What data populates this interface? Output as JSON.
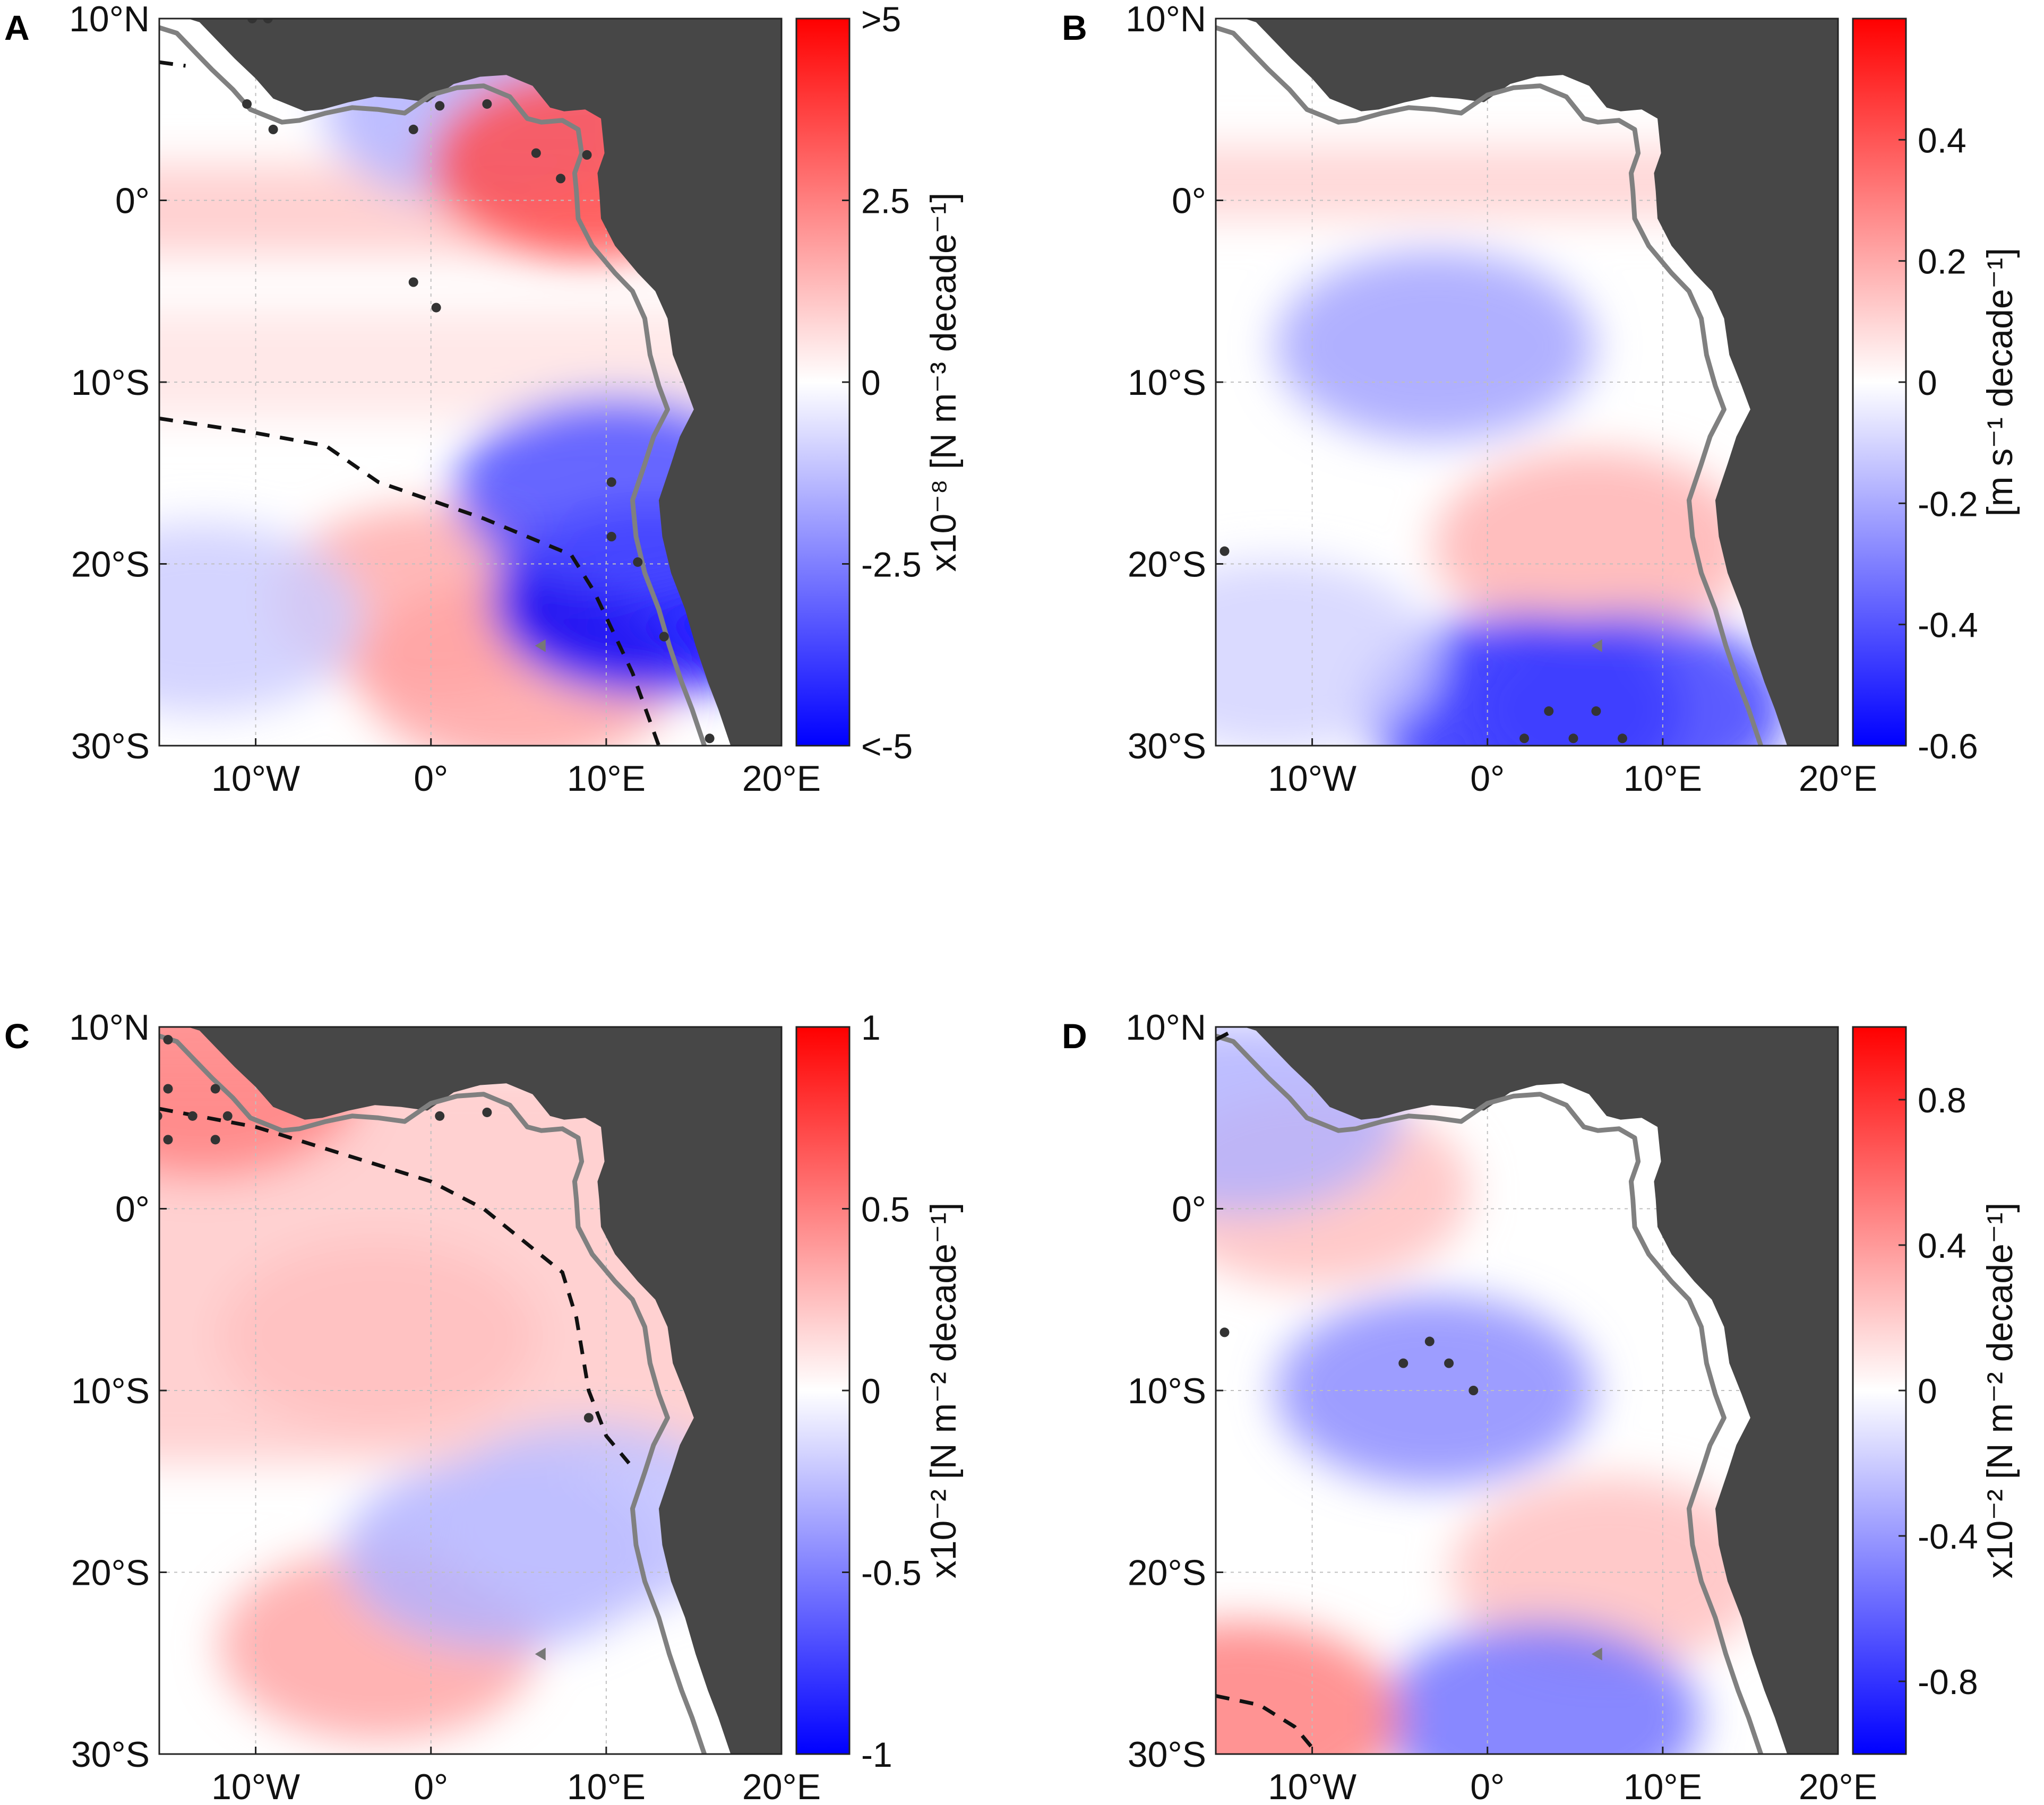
{
  "figure": {
    "panels": [
      {
        "letter": "A",
        "title": ""
      },
      {
        "letter": "B",
        "title": ""
      },
      {
        "letter": "C",
        "title": ""
      },
      {
        "letter": "D",
        "title": ""
      }
    ]
  },
  "chart_data": [
    {
      "type": "heatmap",
      "panel": "A",
      "description_variable": "trend map",
      "xlabel": "",
      "ylabel": "",
      "xlim": [
        -15.5,
        20
      ],
      "ylim": [
        -30,
        10
      ],
      "xticks": [
        -10,
        0,
        10,
        20
      ],
      "xtick_labels": [
        "10°W",
        "0°",
        "10°E",
        "20°E"
      ],
      "yticks": [
        10,
        0,
        -10,
        -20,
        -30
      ],
      "ytick_labels": [
        "10°N",
        "0°",
        "10°S",
        "20°S",
        "30°S"
      ],
      "colorbar": {
        "label": "x10⁻⁸ [N m⁻³ decade⁻¹]",
        "min": -5,
        "max": 5,
        "ticks": [
          5,
          2.5,
          0,
          -2.5,
          -5
        ],
        "tick_labels": [
          ">5",
          "2.5",
          "0",
          "-2.5",
          "<-5"
        ],
        "colormap": [
          "#0000ff",
          "#ffffff",
          "#ff0000"
        ]
      },
      "features": [
        {
          "type": "band",
          "lat_range": [
            -3,
            2
          ],
          "value": 1.0
        },
        {
          "type": "band",
          "lat_range": [
            -12,
            -6
          ],
          "value": 0.5
        },
        {
          "type": "blob",
          "lon": 0,
          "lat": -22,
          "value": 1.6
        },
        {
          "type": "blob",
          "lon": 5,
          "lat": -26,
          "value": 1.8
        },
        {
          "type": "blob",
          "lon": 12.5,
          "lat": -22,
          "value": -5
        },
        {
          "type": "blob",
          "lon": 10.5,
          "lat": -16,
          "value": -3.5
        },
        {
          "type": "blob",
          "lon": 3,
          "lat": 5,
          "value": -1.5
        },
        {
          "type": "blob",
          "lon": 9,
          "lat": 2,
          "value": 3.5
        },
        {
          "type": "blob",
          "lon": -13,
          "lat": -23,
          "value": -1.0
        }
      ],
      "dashed_contour": [
        [
          -15.5,
          -12
        ],
        [
          -10,
          -12.8
        ],
        [
          -6,
          -13.5
        ],
        [
          -3,
          -15.5
        ],
        [
          3,
          -17.5
        ],
        [
          8,
          -19.5
        ],
        [
          9.3,
          -21.5
        ],
        [
          11.5,
          -26
        ],
        [
          13,
          -30
        ]
      ],
      "dashed_contour_north": [
        [
          -15.5,
          7.6
        ],
        [
          -14,
          7.4
        ]
      ],
      "significance_points": [
        [
          -10.2,
          10
        ],
        [
          -9.3,
          10
        ],
        [
          -10.5,
          5.3
        ],
        [
          -9,
          3.9
        ],
        [
          -1,
          3.9
        ],
        [
          0.5,
          5.2
        ],
        [
          3.2,
          5.3
        ],
        [
          6,
          2.6
        ],
        [
          7.4,
          1.2
        ],
        [
          8.9,
          2.5
        ],
        [
          -1,
          -4.5
        ],
        [
          0.3,
          -5.9
        ],
        [
          10.3,
          -15.5
        ],
        [
          10.3,
          -18.5
        ],
        [
          11.8,
          -19.9
        ],
        [
          13.3,
          -24
        ],
        [
          15.9,
          -29.6
        ]
      ],
      "marker": [
        6.3,
        -24.5
      ]
    },
    {
      "type": "heatmap",
      "panel": "B",
      "xlabel": "",
      "ylabel": "",
      "xlim": [
        -15.5,
        20
      ],
      "ylim": [
        -30,
        10
      ],
      "xticks": [
        -10,
        0,
        10,
        20
      ],
      "xtick_labels": [
        "10°W",
        "0°",
        "10°E",
        "20°E"
      ],
      "yticks": [
        10,
        0,
        -10,
        -20,
        -30
      ],
      "ytick_labels": [
        "10°N",
        "0°",
        "10°S",
        "20°S",
        "30°S"
      ],
      "colorbar": {
        "label": "[m s⁻¹ decade⁻¹]",
        "min": -0.6,
        "max": 0.6,
        "ticks": [
          0.4,
          0.2,
          0,
          -0.2,
          -0.4,
          -0.6
        ],
        "tick_labels": [
          "0.4",
          "0.2",
          "0",
          "-0.2",
          "-0.4",
          "-0.6"
        ],
        "colormap": [
          "#0000ff",
          "#ffffff",
          "#ff0000"
        ]
      },
      "features": [
        {
          "type": "band",
          "lat_range": [
            -1,
            3
          ],
          "value": 0.1
        },
        {
          "type": "blob",
          "lon": -3,
          "lat": -8,
          "value": -0.22
        },
        {
          "type": "blob",
          "lon": 6,
          "lat": -19,
          "value": 0.18
        },
        {
          "type": "blob",
          "lon": 2,
          "lat": -28,
          "value": -0.5
        },
        {
          "type": "blob",
          "lon": 8,
          "lat": -28,
          "value": -0.45
        },
        {
          "type": "blob",
          "lon": -12,
          "lat": -25,
          "value": -0.1
        }
      ],
      "dashed_contour": [],
      "significance_points": [
        [
          -15,
          -19.3
        ],
        [
          3.5,
          -28.1
        ],
        [
          6.2,
          -28.1
        ],
        [
          2.1,
          -29.6
        ],
        [
          4.9,
          -29.6
        ],
        [
          7.7,
          -29.6
        ]
      ],
      "marker": [
        6.3,
        -24.5
      ]
    },
    {
      "type": "heatmap",
      "panel": "C",
      "xlabel": "",
      "ylabel": "",
      "xlim": [
        -15.5,
        20
      ],
      "ylim": [
        -30,
        10
      ],
      "xticks": [
        -10,
        0,
        10,
        20
      ],
      "xtick_labels": [
        "10°W",
        "0°",
        "10°E",
        "20°E"
      ],
      "yticks": [
        10,
        0,
        -10,
        -20,
        -30
      ],
      "ytick_labels": [
        "10°N",
        "0°",
        "10°S",
        "20°S",
        "30°S"
      ],
      "colorbar": {
        "label": "x10⁻² [N m⁻² decade⁻¹]",
        "min": -1,
        "max": 1,
        "ticks": [
          1,
          0.5,
          0,
          -0.5,
          -1
        ],
        "tick_labels": [
          "1",
          "0.5",
          "0",
          "-0.5",
          "-1"
        ],
        "colormap": [
          "#0000ff",
          "#ffffff",
          "#ff0000"
        ]
      },
      "features": [
        {
          "type": "band",
          "lat_range": [
            -14,
            8
          ],
          "value": 0.2
        },
        {
          "type": "blob",
          "lon": -3,
          "lat": -7,
          "value": 0.25
        },
        {
          "type": "blob",
          "lon": -13,
          "lat": 7,
          "value": 0.5
        },
        {
          "type": "blob",
          "lon": -3,
          "lat": -24,
          "value": 0.35
        },
        {
          "type": "blob",
          "lon": 4,
          "lat": -19,
          "value": -0.3
        },
        {
          "type": "blob",
          "lon": 9,
          "lat": -17,
          "value": -0.25
        }
      ],
      "dashed_contour": [
        [
          -15.5,
          5.5
        ],
        [
          -10,
          4.5
        ],
        [
          -5,
          3
        ],
        [
          0,
          1.5
        ],
        [
          3,
          0
        ],
        [
          7.5,
          -3.5
        ],
        [
          8.3,
          -6
        ],
        [
          9,
          -10
        ],
        [
          10,
          -12.5
        ],
        [
          11.3,
          -14
        ]
      ],
      "significance_points": [
        [
          -15,
          9.3
        ],
        [
          -15,
          6.6
        ],
        [
          -12.3,
          6.6
        ],
        [
          -15.6,
          5.1
        ],
        [
          -13.6,
          5.1
        ],
        [
          -11.6,
          5.1
        ],
        [
          -15,
          3.8
        ],
        [
          -12.3,
          3.8
        ],
        [
          0.5,
          5.1
        ],
        [
          3.2,
          5.3
        ],
        [
          9,
          -11.5
        ]
      ],
      "marker": [
        6.3,
        -24.5
      ]
    },
    {
      "type": "heatmap",
      "panel": "D",
      "xlabel": "",
      "ylabel": "",
      "xlim": [
        -15.5,
        20
      ],
      "ylim": [
        -30,
        10
      ],
      "xticks": [
        -10,
        0,
        10,
        20
      ],
      "xtick_labels": [
        "10°W",
        "0°",
        "10°E",
        "20°E"
      ],
      "yticks": [
        10,
        0,
        -10,
        -20,
        -30
      ],
      "ytick_labels": [
        "10°N",
        "0°",
        "10°S",
        "20°S",
        "30°S"
      ],
      "colorbar": {
        "label": "x10⁻² [N m⁻² decade⁻¹]",
        "min": -1,
        "max": 1,
        "ticks": [
          0.8,
          0.4,
          0,
          -0.4,
          -0.8
        ],
        "tick_labels": [
          "0.8",
          "0.4",
          "0",
          "-0.4",
          "-0.8"
        ],
        "colormap": [
          "#0000ff",
          "#ffffff",
          "#ff0000"
        ]
      },
      "features": [
        {
          "type": "blob",
          "lon": -10,
          "lat": 1,
          "value": 0.25
        },
        {
          "type": "blob",
          "lon": -3,
          "lat": -10,
          "value": -0.45
        },
        {
          "type": "blob",
          "lon": 7,
          "lat": -20,
          "value": 0.25
        },
        {
          "type": "blob",
          "lon": 3,
          "lat": -28,
          "value": -0.55
        },
        {
          "type": "blob",
          "lon": -14,
          "lat": -28,
          "value": 0.5
        },
        {
          "type": "blob",
          "lon": -14,
          "lat": 5,
          "value": -0.3
        }
      ],
      "dashed_contour": [
        [
          -15.5,
          -26.8
        ],
        [
          -13,
          -27.3
        ],
        [
          -11,
          -28.5
        ],
        [
          -9.7,
          -30
        ]
      ],
      "dashed_contour_north": [
        [
          -15.5,
          9.3
        ],
        [
          -14.7,
          9.7
        ]
      ],
      "significance_points": [
        [
          -15,
          -6.8
        ],
        [
          -3.3,
          -7.3
        ],
        [
          -4.8,
          -8.5
        ],
        [
          -2.2,
          -8.5
        ],
        [
          -0.8,
          -10
        ]
      ],
      "marker": [
        6.3,
        -24.5
      ]
    }
  ]
}
